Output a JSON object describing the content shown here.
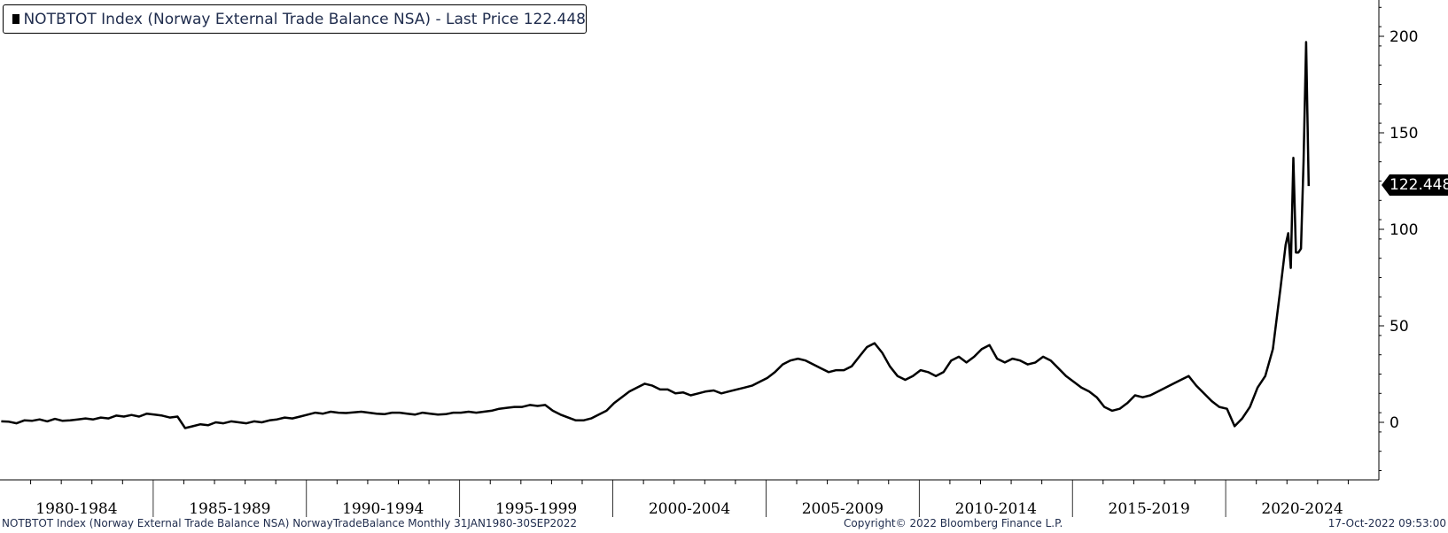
{
  "legend": {
    "text": "NOTBTOT Index (Norway External Trade Balance NSA) - Last Price 122.448",
    "swatch_color": "#000000"
  },
  "last_price_label": "122.448",
  "footer": {
    "left": "NOTBTOT Index (Norway External Trade Balance NSA) NorwayTradeBalance  Monthly 31JAN1980-30SEP2022",
    "center": "Copyright© 2022 Bloomberg Finance L.P.",
    "right": "17-Oct-2022 09:53:00"
  },
  "chart_data": {
    "type": "line",
    "title": "",
    "xlabel": "",
    "ylabel": "",
    "ylim": [
      -30,
      220
    ],
    "y_ticks": [
      0,
      50,
      100,
      150,
      200
    ],
    "x_categories": [
      "1980-1984",
      "1985-1989",
      "1990-1994",
      "1995-1999",
      "2000-2004",
      "2005-2009",
      "2010-2014",
      "2015-2019",
      "2020-2024"
    ],
    "grid": false,
    "legend_position": "top-left",
    "series": [
      {
        "name": "NOTBTOT Index (Norway External Trade Balance NSA)",
        "color": "#000000",
        "points": [
          [
            "1980-01",
            0.5
          ],
          [
            "1980-04",
            0.3
          ],
          [
            "1980-07",
            -0.5
          ],
          [
            "1980-10",
            1.0
          ],
          [
            "1981-01",
            0.8
          ],
          [
            "1981-04",
            1.5
          ],
          [
            "1981-07",
            0.5
          ],
          [
            "1981-10",
            1.8
          ],
          [
            "1982-01",
            0.8
          ],
          [
            "1982-04",
            1.0
          ],
          [
            "1982-07",
            1.5
          ],
          [
            "1982-10",
            2.0
          ],
          [
            "1983-01",
            1.5
          ],
          [
            "1983-04",
            2.5
          ],
          [
            "1983-07",
            2.0
          ],
          [
            "1983-10",
            3.5
          ],
          [
            "1984-01",
            3.0
          ],
          [
            "1984-04",
            3.8
          ],
          [
            "1984-07",
            3.0
          ],
          [
            "1984-10",
            4.5
          ],
          [
            "1985-01",
            4.0
          ],
          [
            "1985-04",
            3.5
          ],
          [
            "1985-07",
            2.5
          ],
          [
            "1985-10",
            3.0
          ],
          [
            "1986-01",
            -3.0
          ],
          [
            "1986-04",
            -2.0
          ],
          [
            "1986-07",
            -1.0
          ],
          [
            "1986-10",
            -1.5
          ],
          [
            "1987-01",
            0.0
          ],
          [
            "1987-04",
            -0.5
          ],
          [
            "1987-07",
            0.5
          ],
          [
            "1987-10",
            0.0
          ],
          [
            "1988-01",
            -0.5
          ],
          [
            "1988-04",
            0.5
          ],
          [
            "1988-07",
            0.0
          ],
          [
            "1988-10",
            1.0
          ],
          [
            "1989-01",
            1.5
          ],
          [
            "1989-04",
            2.5
          ],
          [
            "1989-07",
            2.0
          ],
          [
            "1989-10",
            3.0
          ],
          [
            "1990-01",
            4.0
          ],
          [
            "1990-04",
            5.0
          ],
          [
            "1990-07",
            4.5
          ],
          [
            "1990-10",
            5.5
          ],
          [
            "1991-01",
            5.0
          ],
          [
            "1991-04",
            4.8
          ],
          [
            "1991-07",
            5.2
          ],
          [
            "1991-10",
            5.5
          ],
          [
            "1992-01",
            5.0
          ],
          [
            "1992-04",
            4.5
          ],
          [
            "1992-07",
            4.2
          ],
          [
            "1992-10",
            5.0
          ],
          [
            "1993-01",
            5.0
          ],
          [
            "1993-04",
            4.5
          ],
          [
            "1993-07",
            4.0
          ],
          [
            "1993-10",
            5.0
          ],
          [
            "1994-01",
            4.5
          ],
          [
            "1994-04",
            4.0
          ],
          [
            "1994-07",
            4.2
          ],
          [
            "1994-10",
            5.0
          ],
          [
            "1995-01",
            5.0
          ],
          [
            "1995-04",
            5.5
          ],
          [
            "1995-07",
            5.0
          ],
          [
            "1995-10",
            5.5
          ],
          [
            "1996-01",
            6.0
          ],
          [
            "1996-04",
            7.0
          ],
          [
            "1996-07",
            7.5
          ],
          [
            "1996-10",
            8.0
          ],
          [
            "1997-01",
            8.0
          ],
          [
            "1997-04",
            9.0
          ],
          [
            "1997-07",
            8.5
          ],
          [
            "1997-10",
            9.0
          ],
          [
            "1998-01",
            6.0
          ],
          [
            "1998-04",
            4.0
          ],
          [
            "1998-07",
            2.5
          ],
          [
            "1998-10",
            1.0
          ],
          [
            "1999-01",
            1.0
          ],
          [
            "1999-04",
            2.0
          ],
          [
            "1999-07",
            4.0
          ],
          [
            "1999-10",
            6.0
          ],
          [
            "2000-01",
            10.0
          ],
          [
            "2000-04",
            13.0
          ],
          [
            "2000-07",
            16.0
          ],
          [
            "2000-10",
            18.0
          ],
          [
            "2001-01",
            20.0
          ],
          [
            "2001-04",
            19.0
          ],
          [
            "2001-07",
            17.0
          ],
          [
            "2001-10",
            17.0
          ],
          [
            "2002-01",
            15.0
          ],
          [
            "2002-04",
            15.5
          ],
          [
            "2002-07",
            14.0
          ],
          [
            "2002-10",
            15.0
          ],
          [
            "2003-01",
            16.0
          ],
          [
            "2003-04",
            16.5
          ],
          [
            "2003-07",
            15.0
          ],
          [
            "2003-10",
            16.0
          ],
          [
            "2004-01",
            17.0
          ],
          [
            "2004-04",
            18.0
          ],
          [
            "2004-07",
            19.0
          ],
          [
            "2004-10",
            21.0
          ],
          [
            "2005-01",
            23.0
          ],
          [
            "2005-04",
            26.0
          ],
          [
            "2005-07",
            30.0
          ],
          [
            "2005-10",
            32.0
          ],
          [
            "2006-01",
            33.0
          ],
          [
            "2006-04",
            32.0
          ],
          [
            "2006-07",
            30.0
          ],
          [
            "2006-10",
            28.0
          ],
          [
            "2007-01",
            26.0
          ],
          [
            "2007-04",
            27.0
          ],
          [
            "2007-07",
            27.0
          ],
          [
            "2007-10",
            29.0
          ],
          [
            "2008-01",
            34.0
          ],
          [
            "2008-04",
            39.0
          ],
          [
            "2008-07",
            41.0
          ],
          [
            "2008-10",
            36.0
          ],
          [
            "2009-01",
            29.0
          ],
          [
            "2009-04",
            24.0
          ],
          [
            "2009-07",
            22.0
          ],
          [
            "2009-10",
            24.0
          ],
          [
            "2010-01",
            27.0
          ],
          [
            "2010-04",
            26.0
          ],
          [
            "2010-07",
            24.0
          ],
          [
            "2010-10",
            26.0
          ],
          [
            "2011-01",
            32.0
          ],
          [
            "2011-04",
            34.0
          ],
          [
            "2011-07",
            31.0
          ],
          [
            "2011-10",
            34.0
          ],
          [
            "2012-01",
            38.0
          ],
          [
            "2012-04",
            40.0
          ],
          [
            "2012-07",
            33.0
          ],
          [
            "2012-10",
            31.0
          ],
          [
            "2013-01",
            33.0
          ],
          [
            "2013-04",
            32.0
          ],
          [
            "2013-07",
            30.0
          ],
          [
            "2013-10",
            31.0
          ],
          [
            "2014-01",
            34.0
          ],
          [
            "2014-04",
            32.0
          ],
          [
            "2014-07",
            28.0
          ],
          [
            "2014-10",
            24.0
          ],
          [
            "2015-01",
            21.0
          ],
          [
            "2015-04",
            18.0
          ],
          [
            "2015-07",
            16.0
          ],
          [
            "2015-10",
            13.0
          ],
          [
            "2016-01",
            8.0
          ],
          [
            "2016-04",
            6.0
          ],
          [
            "2016-07",
            7.0
          ],
          [
            "2016-10",
            10.0
          ],
          [
            "2017-01",
            14.0
          ],
          [
            "2017-04",
            13.0
          ],
          [
            "2017-07",
            14.0
          ],
          [
            "2017-10",
            16.0
          ],
          [
            "2018-01",
            18.0
          ],
          [
            "2018-04",
            20.0
          ],
          [
            "2018-07",
            22.0
          ],
          [
            "2018-10",
            24.0
          ],
          [
            "2019-01",
            19.0
          ],
          [
            "2019-04",
            15.0
          ],
          [
            "2019-07",
            11.0
          ],
          [
            "2019-10",
            8.0
          ],
          [
            "2020-01",
            7.0
          ],
          [
            "2020-04",
            -2.0
          ],
          [
            "2020-07",
            2.0
          ],
          [
            "2020-10",
            8.0
          ],
          [
            "2021-01",
            18.0
          ],
          [
            "2021-04",
            24.0
          ],
          [
            "2021-07",
            38.0
          ],
          [
            "2021-10",
            70.0
          ],
          [
            "2021-12",
            92.0
          ],
          [
            "2022-01",
            98.0
          ],
          [
            "2022-02",
            80.0
          ],
          [
            "2022-03",
            137.0
          ],
          [
            "2022-04",
            88.0
          ],
          [
            "2022-05",
            88.0
          ],
          [
            "2022-06",
            90.0
          ],
          [
            "2022-07",
            135.0
          ],
          [
            "2022-08",
            197.0
          ],
          [
            "2022-09",
            122.448
          ]
        ]
      }
    ]
  }
}
